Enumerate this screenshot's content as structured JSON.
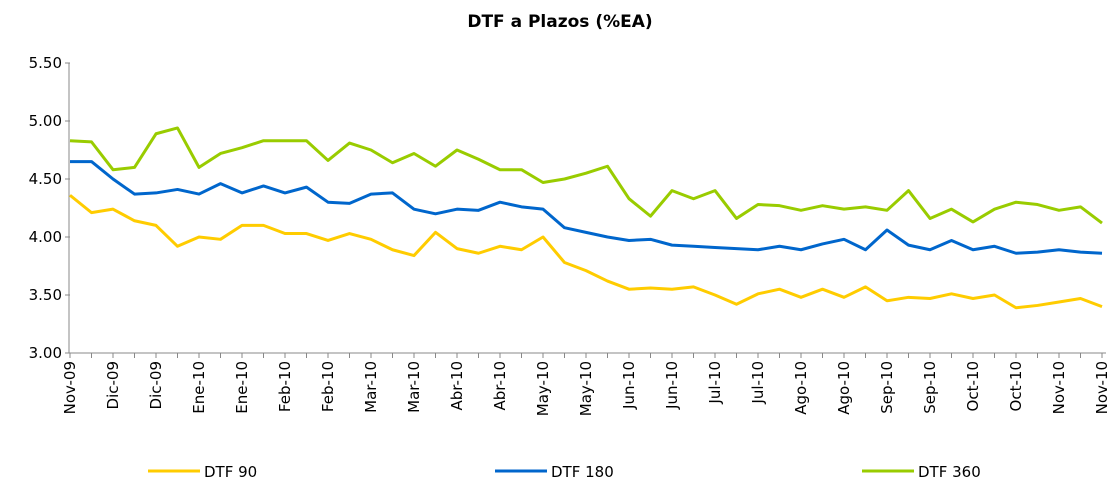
{
  "chart_data": {
    "type": "line",
    "title": "DTF a Plazos (%EA)",
    "categories": [
      "Nov-09",
      null,
      "Dic-09",
      null,
      "Dic-09",
      null,
      "Ene-10",
      null,
      "Ene-10",
      null,
      "Feb-10",
      null,
      "Feb-10",
      null,
      "Mar-10",
      null,
      "Mar-10",
      null,
      "Abr-10",
      null,
      "Abr-10",
      null,
      "May-10",
      null,
      "May-10",
      null,
      "Jun-10",
      null,
      "Jun-10",
      null,
      "Jul-10",
      null,
      "Jul-10",
      null,
      "Ago-10",
      null,
      "Ago-10",
      null,
      "Sep-10",
      null,
      "Sep-10",
      null,
      "Oct-10",
      null,
      "Oct-10",
      null,
      "Nov-10",
      null,
      "Nov-10"
    ],
    "series": [
      {
        "name": "DTF 90",
        "color": "#ffcc00",
        "values": [
          4.36,
          4.21,
          4.24,
          4.14,
          4.1,
          3.92,
          4.0,
          3.98,
          4.1,
          4.1,
          4.03,
          4.03,
          3.97,
          4.03,
          3.98,
          3.89,
          3.84,
          4.04,
          3.9,
          3.86,
          3.92,
          3.89,
          4.0,
          3.78,
          3.71,
          3.62,
          3.55,
          3.56,
          3.55,
          3.57,
          3.5,
          3.42,
          3.51,
          3.55,
          3.48,
          3.55,
          3.48,
          3.57,
          3.45,
          3.48,
          3.47,
          3.51,
          3.47,
          3.5,
          3.39,
          3.41,
          3.44,
          3.47,
          3.4
        ]
      },
      {
        "name": "DTF 180",
        "color": "#0066cc",
        "values": [
          4.65,
          4.65,
          4.5,
          4.37,
          4.38,
          4.41,
          4.37,
          4.46,
          4.38,
          4.44,
          4.38,
          4.43,
          4.3,
          4.29,
          4.37,
          4.38,
          4.24,
          4.2,
          4.24,
          4.23,
          4.3,
          4.26,
          4.24,
          4.08,
          4.04,
          4.0,
          3.97,
          3.98,
          3.93,
          3.92,
          3.91,
          3.9,
          3.89,
          3.92,
          3.89,
          3.94,
          3.98,
          3.89,
          4.06,
          3.93,
          3.89,
          3.97,
          3.89,
          3.92,
          3.86,
          3.87,
          3.89,
          3.87,
          3.86
        ]
      },
      {
        "name": "DTF 360",
        "color": "#99cc00",
        "values": [
          4.83,
          4.82,
          4.58,
          4.6,
          4.89,
          4.94,
          4.6,
          4.72,
          4.77,
          4.83,
          4.83,
          4.83,
          4.66,
          4.81,
          4.75,
          4.64,
          4.72,
          4.61,
          4.75,
          4.67,
          4.58,
          4.58,
          4.47,
          4.5,
          4.55,
          4.61,
          4.33,
          4.18,
          4.4,
          4.33,
          4.4,
          4.16,
          4.28,
          4.27,
          4.23,
          4.27,
          4.24,
          4.26,
          4.23,
          4.4,
          4.16,
          4.24,
          4.13,
          4.24,
          4.3,
          4.28,
          4.23,
          4.26,
          4.12
        ]
      }
    ],
    "ylim": [
      3,
      5.5
    ],
    "yticks": [
      {
        "value": 3,
        "label": "3.00"
      },
      {
        "value": 3.5,
        "label": "3.50"
      },
      {
        "value": 4,
        "label": "4.00"
      },
      {
        "value": 4.5,
        "label": "4.50"
      },
      {
        "value": 5,
        "label": "5.00"
      },
      {
        "value": 5.5,
        "label": "5.50"
      }
    ],
    "legend": "bottom"
  }
}
